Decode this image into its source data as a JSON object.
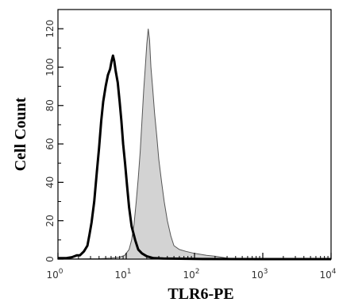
{
  "chart_data": {
    "type": "area",
    "xlabel": "TLR6-PE",
    "ylabel": "Cell Count",
    "x_scale": "log",
    "xlim": [
      1,
      10000
    ],
    "ylim": [
      0,
      130
    ],
    "grid": false,
    "x_ticks": [
      {
        "value": 1,
        "base": "10",
        "exp": "0"
      },
      {
        "value": 10,
        "base": "10",
        "exp": "1"
      },
      {
        "value": 100,
        "base": "10",
        "exp": "2"
      },
      {
        "value": 1000,
        "base": "10",
        "exp": "3"
      },
      {
        "value": 10000,
        "base": "10",
        "exp": "4"
      }
    ],
    "y_ticks": [
      0,
      20,
      40,
      60,
      80,
      100,
      120
    ],
    "series": [
      {
        "style": "thick-black-line",
        "color": "#000000",
        "points": [
          [
            1,
            0.5
          ],
          [
            1.3,
            0.5
          ],
          [
            1.6,
            1
          ],
          [
            1.9,
            2
          ],
          [
            2.1,
            2
          ],
          [
            2.4,
            4
          ],
          [
            2.7,
            7
          ],
          [
            2.9,
            13
          ],
          [
            3.1,
            19
          ],
          [
            3.4,
            30
          ],
          [
            3.7,
            45
          ],
          [
            4.0,
            58
          ],
          [
            4.3,
            72
          ],
          [
            4.6,
            82
          ],
          [
            5.0,
            90
          ],
          [
            5.4,
            96
          ],
          [
            5.8,
            99
          ],
          [
            6.1,
            103
          ],
          [
            6.4,
            106
          ],
          [
            6.7,
            103
          ],
          [
            7.0,
            98
          ],
          [
            7.5,
            92
          ],
          [
            8.0,
            82
          ],
          [
            8.5,
            72
          ],
          [
            9.0,
            60
          ],
          [
            9.6,
            50
          ],
          [
            10.3,
            38
          ],
          [
            11,
            27
          ],
          [
            12,
            17
          ],
          [
            13.5,
            10
          ],
          [
            15,
            5
          ],
          [
            17,
            3
          ],
          [
            20,
            1.5
          ],
          [
            25,
            0.5
          ],
          [
            35,
            0.3
          ],
          [
            60,
            0.2
          ],
          [
            100,
            0.1
          ],
          [
            1000,
            0
          ],
          [
            10000,
            0
          ]
        ]
      },
      {
        "style": "gray-filled",
        "color": "#d3d3d3",
        "stroke": "#555555",
        "points": [
          [
            1,
            0
          ],
          [
            4,
            0.2
          ],
          [
            6,
            0.5
          ],
          [
            8,
            1
          ],
          [
            9.5,
            2
          ],
          [
            11,
            5
          ],
          [
            12,
            10
          ],
          [
            13,
            18
          ],
          [
            14,
            30
          ],
          [
            15,
            42
          ],
          [
            16,
            56
          ],
          [
            17,
            72
          ],
          [
            18,
            88
          ],
          [
            19,
            100
          ],
          [
            20,
            112
          ],
          [
            21,
            120
          ],
          [
            22,
            114
          ],
          [
            23,
            100
          ],
          [
            24.5,
            88
          ],
          [
            26,
            76
          ],
          [
            28,
            64
          ],
          [
            30,
            52
          ],
          [
            33,
            40
          ],
          [
            36,
            30
          ],
          [
            40,
            20
          ],
          [
            45,
            12
          ],
          [
            50,
            7
          ],
          [
            60,
            5
          ],
          [
            75,
            4
          ],
          [
            100,
            3
          ],
          [
            150,
            2
          ],
          [
            200,
            1.5
          ],
          [
            300,
            0.5
          ],
          [
            400,
            0.2
          ],
          [
            1000,
            0
          ],
          [
            10000,
            0
          ]
        ]
      }
    ]
  }
}
